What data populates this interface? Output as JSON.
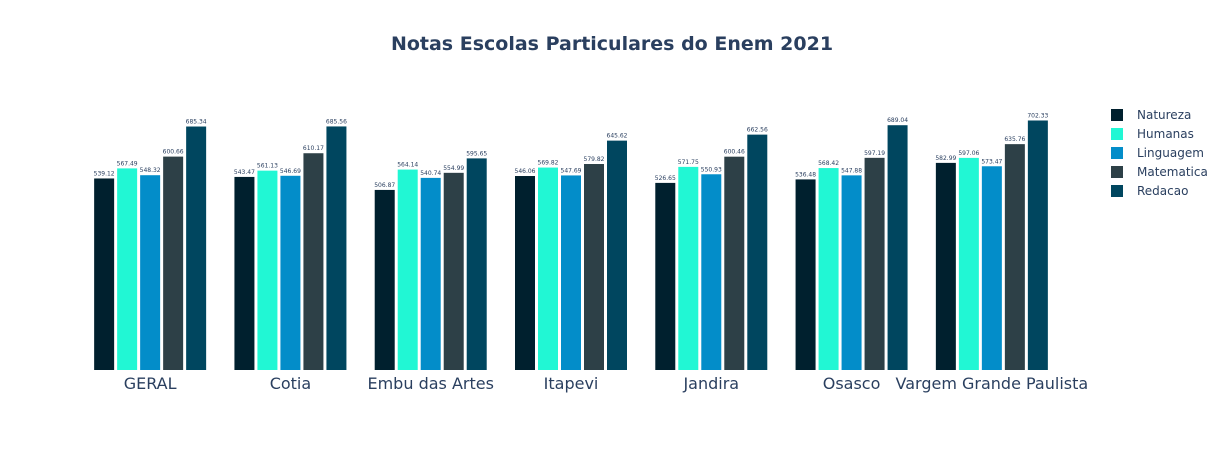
{
  "chart_data": {
    "type": "bar",
    "title": "Notas Escolas Particulares do Enem 2021",
    "xlabel": "",
    "ylabel": "",
    "ylim": [
      0,
      760
    ],
    "grid": false,
    "legend_position": "top-right",
    "categories": [
      "GERAL",
      "Cotia",
      "Embu das Artes",
      "Itapevi",
      "Jandira",
      "Osasco",
      "Vargem Grande Paulista"
    ],
    "series": [
      {
        "name": "Natureza",
        "color": "#00202e",
        "values": [
          539.12,
          543.47,
          506.87,
          546.06,
          526.65,
          536.48,
          582.99
        ]
      },
      {
        "name": "Humanas",
        "color": "#21f7d4",
        "values": [
          567.49,
          561.13,
          564.14,
          569.82,
          571.75,
          568.42,
          597.06
        ]
      },
      {
        "name": "Linguagem",
        "color": "#038dc9",
        "values": [
          548.32,
          546.69,
          540.74,
          547.69,
          550.93,
          547.88,
          573.47
        ]
      },
      {
        "name": "Matematica",
        "color": "#2d4047",
        "values": [
          600.66,
          610.17,
          554.99,
          579.82,
          600.46,
          597.19,
          635.76
        ]
      },
      {
        "name": "Redacao",
        "color": "#00465f",
        "values": [
          685.34,
          685.56,
          595.65,
          645.62,
          662.56,
          689.04,
          702.33
        ]
      }
    ]
  }
}
